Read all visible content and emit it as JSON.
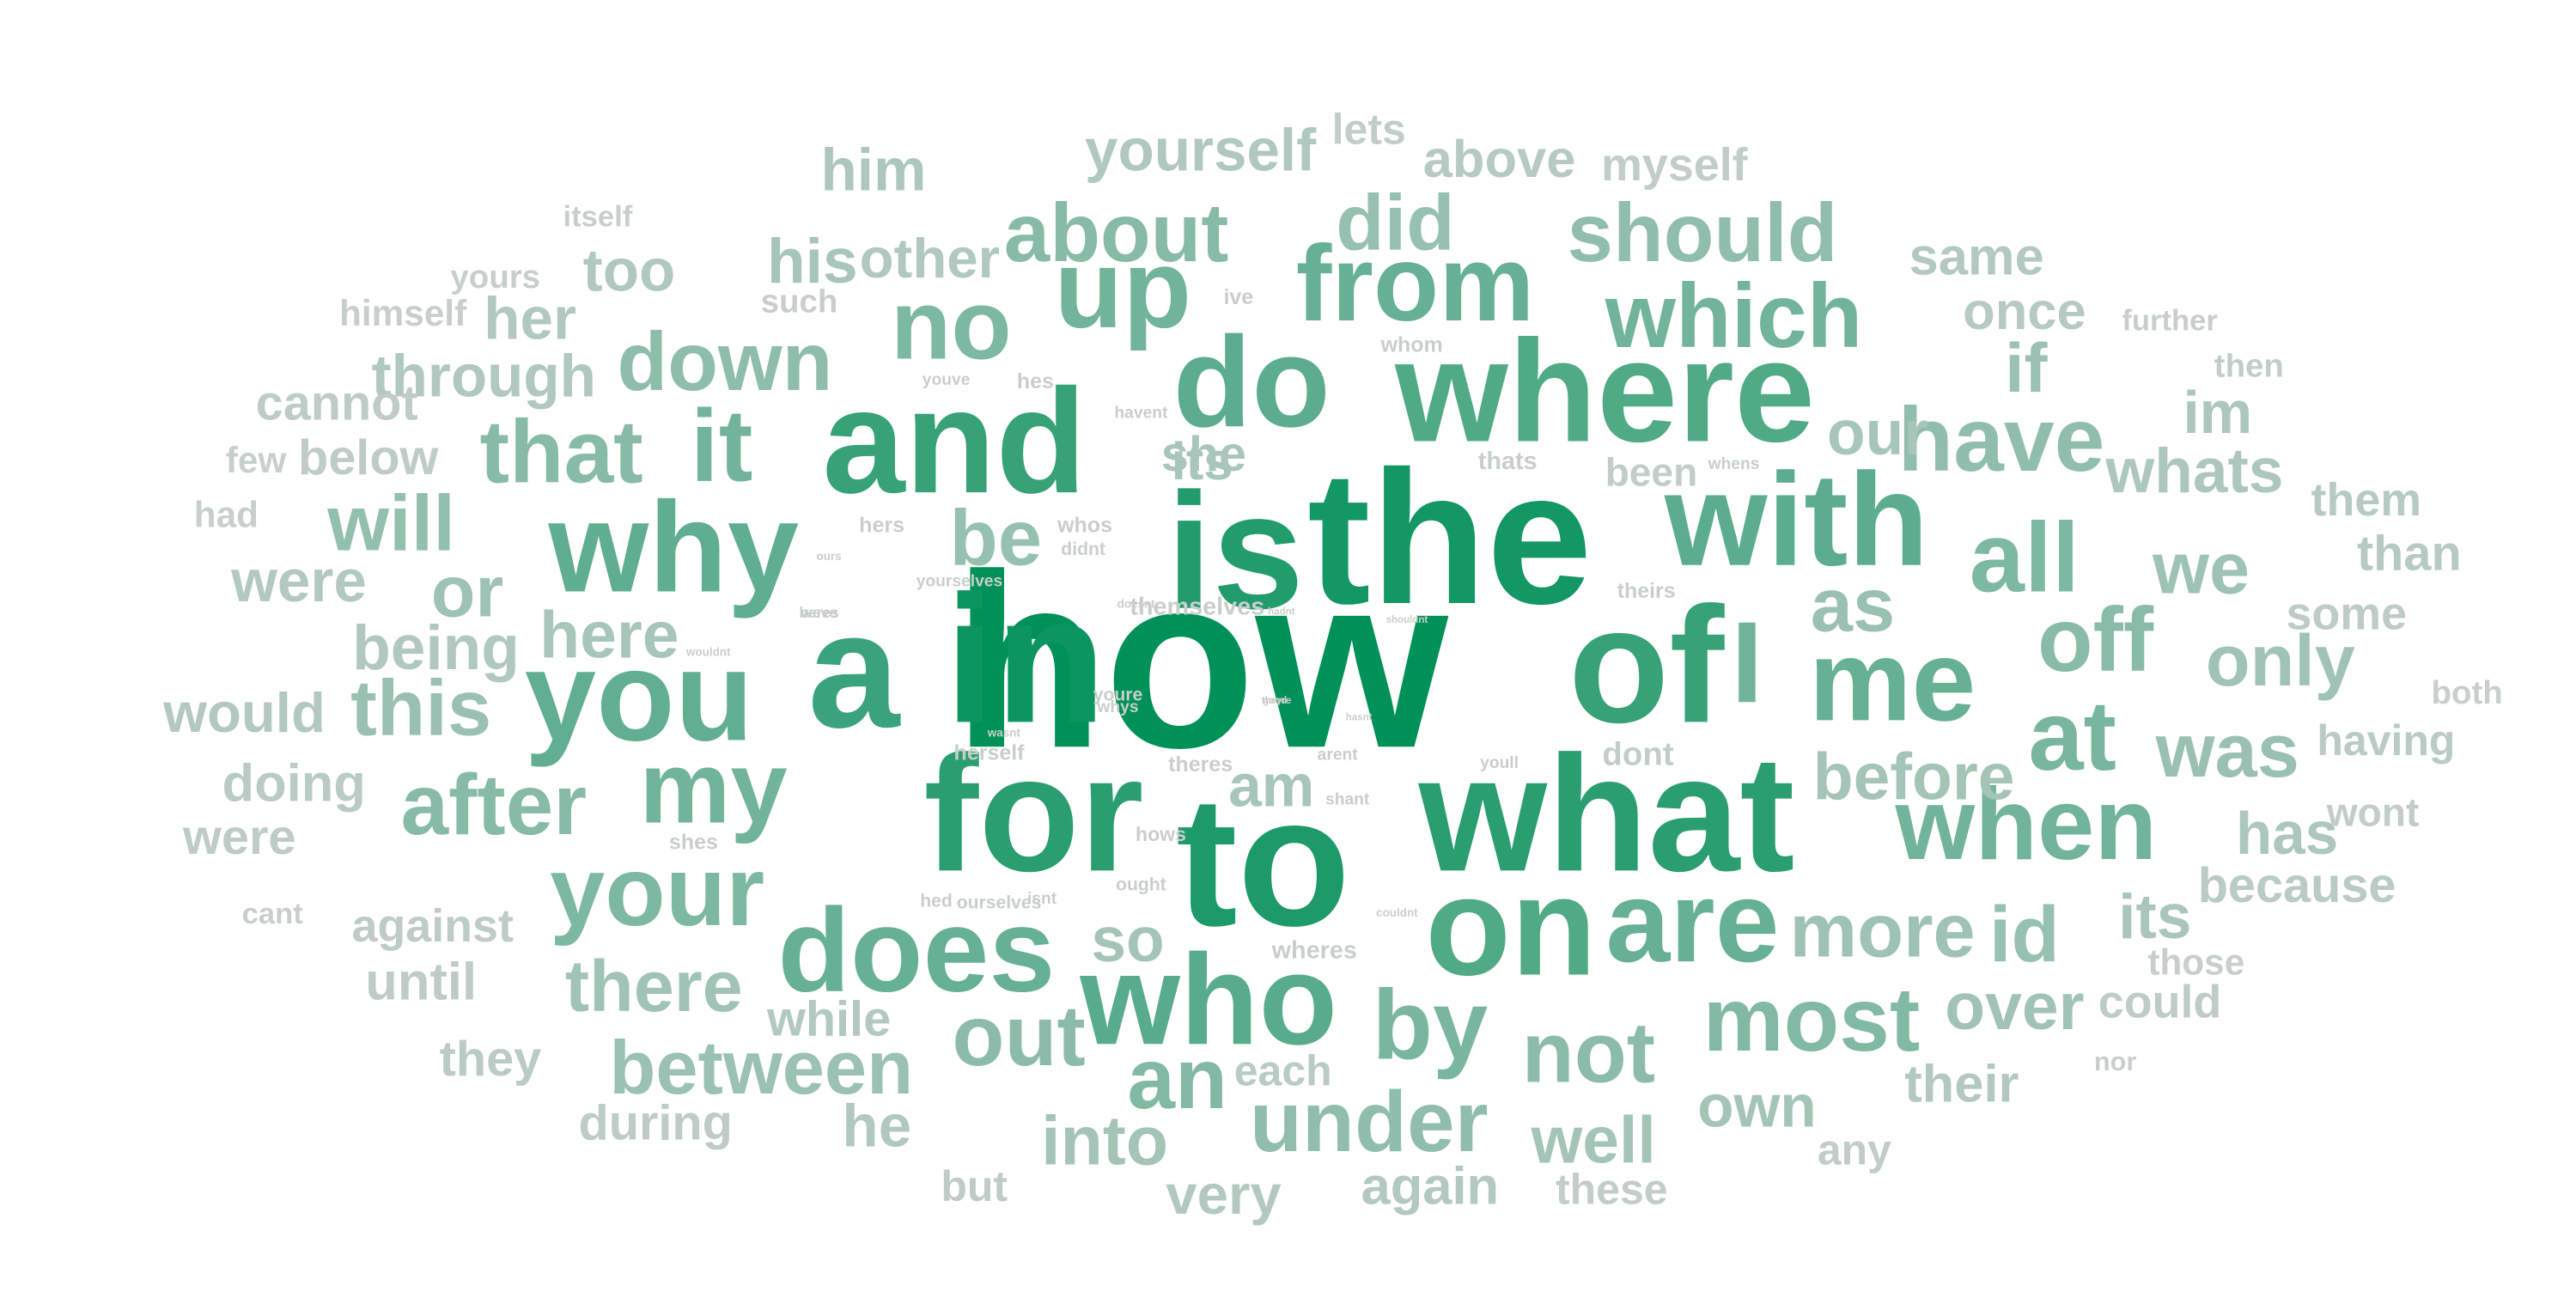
{
  "chart_data": {
    "type": "wordcloud",
    "color_low": "#c8cfcb",
    "color_high": "#009159",
    "words": [
      {
        "text": "how",
        "weight": 1.0
      },
      {
        "text": "in",
        "weight": 0.93
      },
      {
        "text": "the",
        "weight": 0.9
      },
      {
        "text": "to",
        "weight": 0.85
      },
      {
        "text": "is",
        "weight": 0.82
      },
      {
        "text": "what",
        "weight": 0.78
      },
      {
        "text": "for",
        "weight": 0.78
      },
      {
        "text": "and",
        "weight": 0.72
      },
      {
        "text": "of",
        "weight": 0.72
      },
      {
        "text": "a",
        "weight": 0.7
      },
      {
        "text": "on",
        "weight": 0.6
      },
      {
        "text": "where",
        "weight": 0.6
      },
      {
        "text": "who",
        "weight": 0.56
      },
      {
        "text": "with",
        "weight": 0.55
      },
      {
        "text": "do",
        "weight": 0.55
      },
      {
        "text": "why",
        "weight": 0.53
      },
      {
        "text": "you",
        "weight": 0.52
      },
      {
        "text": "does",
        "weight": 0.5
      },
      {
        "text": "me",
        "weight": 0.5
      },
      {
        "text": "are",
        "weight": 0.5
      },
      {
        "text": "from",
        "weight": 0.5
      },
      {
        "text": "which",
        "weight": 0.45
      },
      {
        "text": "I",
        "weight": 0.45
      },
      {
        "text": "up",
        "weight": 0.45
      },
      {
        "text": "my",
        "weight": 0.45
      },
      {
        "text": "when",
        "weight": 0.45
      },
      {
        "text": "it",
        "weight": 0.45
      },
      {
        "text": "by",
        "weight": 0.42
      },
      {
        "text": "at",
        "weight": 0.42
      },
      {
        "text": "all",
        "weight": 0.4
      },
      {
        "text": "your",
        "weight": 0.4
      },
      {
        "text": "no",
        "weight": 0.4
      },
      {
        "text": "most",
        "weight": 0.38
      },
      {
        "text": "an",
        "weight": 0.38
      },
      {
        "text": "about",
        "weight": 0.36
      },
      {
        "text": "that",
        "weight": 0.36
      },
      {
        "text": "after",
        "weight": 0.36
      },
      {
        "text": "off",
        "weight": 0.35
      },
      {
        "text": "not",
        "weight": 0.34
      },
      {
        "text": "out",
        "weight": 0.34
      },
      {
        "text": "down",
        "weight": 0.33
      },
      {
        "text": "under",
        "weight": 0.32
      },
      {
        "text": "should",
        "weight": 0.32
      },
      {
        "text": "have",
        "weight": 0.32
      },
      {
        "text": "will",
        "weight": 0.31
      },
      {
        "text": "be",
        "weight": 0.3
      },
      {
        "text": "id",
        "weight": 0.3
      },
      {
        "text": "did",
        "weight": 0.3
      },
      {
        "text": "was",
        "weight": 0.29
      },
      {
        "text": "this",
        "weight": 0.29
      },
      {
        "text": "as",
        "weight": 0.29
      },
      {
        "text": "between",
        "weight": 0.28
      },
      {
        "text": "if",
        "weight": 0.28
      },
      {
        "text": "more",
        "weight": 0.27
      },
      {
        "text": "or",
        "weight": 0.27
      },
      {
        "text": "we",
        "weight": 0.27
      },
      {
        "text": "only",
        "weight": 0.26
      },
      {
        "text": "there",
        "weight": 0.26
      },
      {
        "text": "over",
        "weight": 0.26
      },
      {
        "text": "into",
        "weight": 0.25
      },
      {
        "text": "well",
        "weight": 0.25
      },
      {
        "text": "before",
        "weight": 0.25
      },
      {
        "text": "own",
        "weight": 0.25
      },
      {
        "text": "so",
        "weight": 0.25
      },
      {
        "text": "here",
        "weight": 0.24
      },
      {
        "text": "his",
        "weight": 0.24
      },
      {
        "text": "am",
        "weight": 0.24
      },
      {
        "text": "our",
        "weight": 0.24
      },
      {
        "text": "its",
        "weight": 0.24
      },
      {
        "text": "its",
        "weight": 0.23
      },
      {
        "text": "she",
        "weight": 0.23
      },
      {
        "text": "im",
        "weight": 0.22
      },
      {
        "text": "whats",
        "weight": 0.22
      },
      {
        "text": "has",
        "weight": 0.22
      },
      {
        "text": "him",
        "weight": 0.22
      },
      {
        "text": "yourself",
        "weight": 0.21
      },
      {
        "text": "being",
        "weight": 0.21
      },
      {
        "text": "too",
        "weight": 0.21
      },
      {
        "text": "through",
        "weight": 0.21
      },
      {
        "text": "other",
        "weight": 0.21
      },
      {
        "text": "her",
        "weight": 0.21
      },
      {
        "text": "he",
        "weight": 0.21
      },
      {
        "text": "very",
        "weight": 0.2
      },
      {
        "text": "again",
        "weight": 0.2
      },
      {
        "text": "while",
        "weight": 0.2
      },
      {
        "text": "their",
        "weight": 0.2
      },
      {
        "text": "were",
        "weight": 0.2
      },
      {
        "text": "would",
        "weight": 0.2
      },
      {
        "text": "same",
        "weight": 0.2
      },
      {
        "text": "once",
        "weight": 0.19
      },
      {
        "text": "above",
        "weight": 0.19
      },
      {
        "text": "than",
        "weight": 0.19
      },
      {
        "text": "them",
        "weight": 0.19
      },
      {
        "text": "because",
        "weight": 0.18
      },
      {
        "text": "having",
        "weight": 0.18
      },
      {
        "text": "doing",
        "weight": 0.18
      },
      {
        "text": "each",
        "weight": 0.18
      },
      {
        "text": "they",
        "weight": 0.18
      },
      {
        "text": "until",
        "weight": 0.17
      },
      {
        "text": "against",
        "weight": 0.17
      },
      {
        "text": "during",
        "weight": 0.17
      },
      {
        "text": "could",
        "weight": 0.17
      },
      {
        "text": "cannot",
        "weight": 0.17
      },
      {
        "text": "below",
        "weight": 0.17
      },
      {
        "text": "some",
        "weight": 0.17
      },
      {
        "text": "but",
        "weight": 0.17
      },
      {
        "text": "were",
        "weight": 0.17
      },
      {
        "text": "these",
        "weight": 0.16
      },
      {
        "text": "any",
        "weight": 0.16
      },
      {
        "text": "wont",
        "weight": 0.16
      },
      {
        "text": "myself",
        "weight": 0.16
      },
      {
        "text": "lets",
        "weight": 0.16
      },
      {
        "text": "been",
        "weight": 0.16
      },
      {
        "text": "then",
        "weight": 0.16
      },
      {
        "text": "dont",
        "weight": 0.16
      },
      {
        "text": "those",
        "weight": 0.15
      },
      {
        "text": "such",
        "weight": 0.15
      },
      {
        "text": "both",
        "weight": 0.15
      },
      {
        "text": "yours",
        "weight": 0.15
      },
      {
        "text": "himself",
        "weight": 0.14
      },
      {
        "text": "few",
        "weight": 0.14
      },
      {
        "text": "had",
        "weight": 0.14
      },
      {
        "text": "cant",
        "weight": 0.14
      },
      {
        "text": "itself",
        "weight": 0.14
      },
      {
        "text": "further",
        "weight": 0.14
      },
      {
        "text": "themselves",
        "weight": 0.14
      },
      {
        "text": "thats",
        "weight": 0.13
      },
      {
        "text": "hers",
        "weight": 0.13
      },
      {
        "text": "whos",
        "weight": 0.13
      },
      {
        "text": "wheres",
        "weight": 0.12
      },
      {
        "text": "nor",
        "weight": 0.12
      },
      {
        "text": "herself",
        "weight": 0.12
      },
      {
        "text": "whom",
        "weight": 0.12
      },
      {
        "text": "shes",
        "weight": 0.11
      },
      {
        "text": "ourselves",
        "weight": 0.11
      },
      {
        "text": "theres",
        "weight": 0.11
      },
      {
        "text": "ive",
        "weight": 0.11
      },
      {
        "text": "hes",
        "weight": 0.11
      },
      {
        "text": "ought",
        "weight": 0.1
      },
      {
        "text": "hed",
        "weight": 0.1
      },
      {
        "text": "hows",
        "weight": 0.1
      },
      {
        "text": "theirs",
        "weight": 0.1
      },
      {
        "text": "didnt",
        "weight": 0.1
      },
      {
        "text": "youre",
        "weight": 0.1
      },
      {
        "text": "shant",
        "weight": 0.09
      },
      {
        "text": "isnt",
        "weight": 0.09
      },
      {
        "text": "youll",
        "weight": 0.09
      },
      {
        "text": "arent",
        "weight": 0.09
      },
      {
        "text": "youve",
        "weight": 0.09
      },
      {
        "text": "havent",
        "weight": 0.09
      },
      {
        "text": "yourselves",
        "weight": 0.08
      },
      {
        "text": "whys",
        "weight": 0.08
      },
      {
        "text": "whens",
        "weight": 0.08
      },
      {
        "text": "weve",
        "weight": 0.08
      },
      {
        "text": "heres",
        "weight": 0.08
      },
      {
        "text": "doesnt",
        "weight": 0.07
      },
      {
        "text": "ours",
        "weight": 0.08
      },
      {
        "text": "wouldnt",
        "weight": 0.06
      },
      {
        "text": "wasnt",
        "weight": 0.06
      },
      {
        "text": "couldnt",
        "weight": 0.05
      },
      {
        "text": "shouldnt",
        "weight": 0.05
      },
      {
        "text": "theyre",
        "weight": 0.05
      },
      {
        "text": "good",
        "weight": 0.04
      },
      {
        "text": "hasnt",
        "weight": 0.04
      },
      {
        "text": "hadnt",
        "weight": 0.04
      },
      {
        "text": "werent",
        "weight": 0.04
      },
      {
        "text": "mustnt",
        "weight": 0.04
      }
    ]
  }
}
